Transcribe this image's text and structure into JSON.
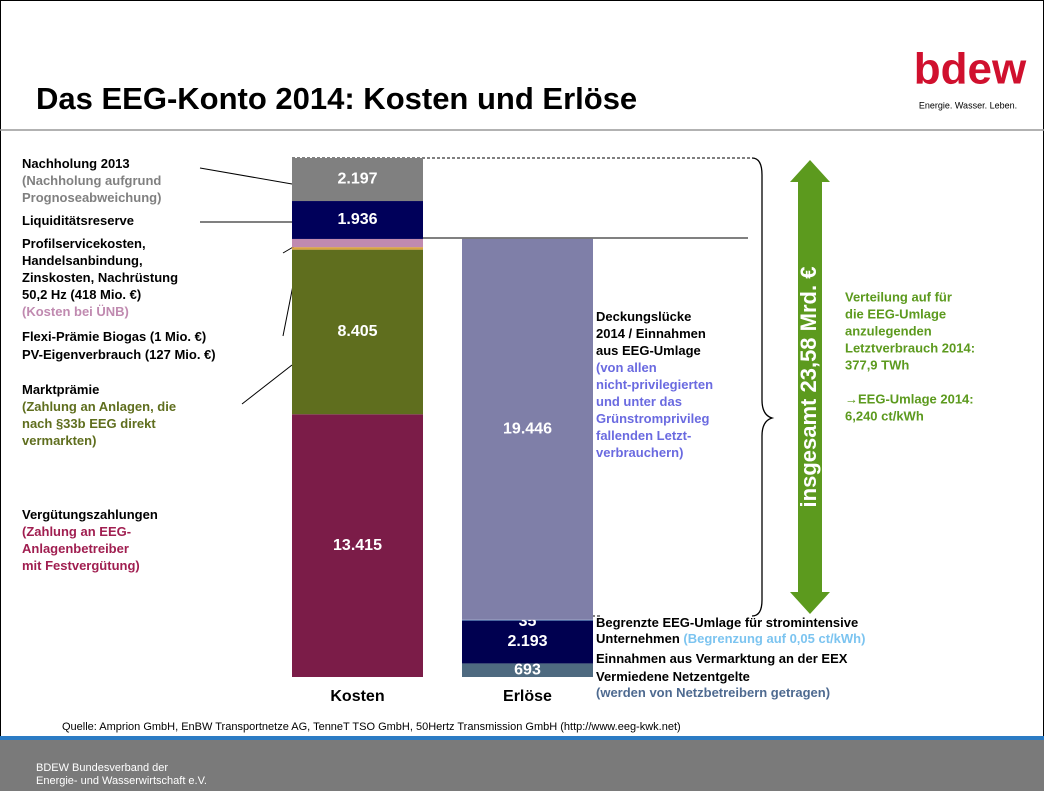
{
  "chart_data": {
    "type": "stacked_bar",
    "title": "Das EEG-Konto 2014: Kosten und Erlöse",
    "logo": {
      "brand": "bdew",
      "slogan": "Energie. Wasser. Leben."
    },
    "categories": [
      "Kosten",
      "Erlöse"
    ],
    "series": [
      {
        "color": "#7b1c48",
        "values": [
          13415,
          null
        ],
        "value_labels": [
          "13.415",
          null
        ],
        "annotation": [
          [
            {
              "text": "Vergütungszahlungen",
              "color": "#000000"
            }
          ],
          [
            {
              "text": "(Zahlung an EEG-",
              "color": "#a01e50"
            }
          ],
          [
            {
              "text": "Anlagenbetreiber",
              "color": "#a01e50"
            }
          ],
          [
            {
              "text": "mit Festvergütung)",
              "color": "#a01e50"
            }
          ]
        ]
      },
      {
        "color": "#5f6e1e",
        "values": [
          8405,
          null
        ],
        "value_labels": [
          "8.405",
          null
        ],
        "annotation": [
          [
            {
              "text": "Marktprämie",
              "color": "#000000"
            }
          ],
          [
            {
              "text": "(Zahlung an Anlagen, die",
              "color": "#5f6e1e"
            }
          ],
          [
            {
              "text": "nach §33b EEG direkt",
              "color": "#5f6e1e"
            }
          ],
          [
            {
              "text": "vermarkten)",
              "color": "#5f6e1e"
            }
          ]
        ]
      },
      {
        "color": "#d9a441",
        "values": [
          127,
          null
        ],
        "value_labels": [
          null,
          null
        ],
        "annotation": [
          [
            {
              "text": "PV-Eigenverbrauch (127 Mio. €)",
              "color": "#000000"
            }
          ]
        ]
      },
      {
        "color": "#7b6000",
        "values": [
          1,
          null
        ],
        "value_labels": [
          null,
          null
        ],
        "annotation": [
          [
            {
              "text": "Flexi-Prämie Biogas (1 Mio. €)",
              "color": "#000000"
            }
          ]
        ]
      },
      {
        "color": "#c08ab0",
        "values": [
          418,
          null
        ],
        "value_labels": [
          null,
          null
        ],
        "annotation": [
          [
            {
              "text": "Profilservicekosten,",
              "color": "#000000"
            }
          ],
          [
            {
              "text": "Handelsanbindung,",
              "color": "#000000"
            }
          ],
          [
            {
              "text": "Zinskosten, Nachrüstung",
              "color": "#000000"
            }
          ],
          [
            {
              "text": "50,2 Hz  (418 Mio. €)",
              "color": "#000000"
            }
          ],
          [
            {
              "text": "(Kosten bei ÜNB)",
              "color": "#c08ab0"
            }
          ]
        ]
      },
      {
        "color": "#00005a",
        "values": [
          1936,
          null
        ],
        "value_labels": [
          "1.936",
          null
        ],
        "annotation": [
          [
            {
              "text": "Liquiditätsreserve",
              "color": "#000000"
            }
          ]
        ]
      },
      {
        "color": "#808080",
        "values": [
          2197,
          null
        ],
        "value_labels": [
          "2.197",
          null
        ],
        "annotation": [
          [
            {
              "text": "Nachholung 2013",
              "color": "#000000"
            }
          ],
          [
            {
              "text": "(Nachholung aufgrund",
              "color": "#808080"
            }
          ],
          [
            {
              "text": "Prognoseabweichung)",
              "color": "#808080"
            }
          ]
        ]
      },
      {
        "color": "#4e6a80",
        "values": [
          null,
          693
        ],
        "value_labels": [
          null,
          "693"
        ],
        "annotation": [
          [
            {
              "text": "Vermiedene Netzentgelte",
              "color": "#000000"
            }
          ],
          [
            {
              "text": "(werden von Netzbetreibern getragen)",
              "color": "#4e6a90"
            }
          ]
        ]
      },
      {
        "color": "#000050",
        "values": [
          null,
          2193
        ],
        "value_labels": [
          null,
          "2.193"
        ],
        "annotation": [
          [
            {
              "text": "Einnahmen aus Vermarktung an der EEX",
              "color": "#000000"
            }
          ]
        ]
      },
      {
        "color": "#8ec8f0",
        "values": [
          null,
          35
        ],
        "value_labels": [
          null,
          "35"
        ],
        "annotation": [
          [
            {
              "text": "Begrenzte EEG-Umlage für stromintensive",
              "color": "#000000"
            }
          ],
          [
            {
              "text": "Unternehmen ",
              "color": "#000000"
            },
            {
              "text": "(Begrenzung auf 0,05 ct/kWh)",
              "color": "#7cc4f0"
            }
          ]
        ]
      },
      {
        "color": "#7f7fa8",
        "values": [
          null,
          19446
        ],
        "value_labels": [
          null,
          "19.446"
        ],
        "annotation": [
          [
            {
              "text": "Deckungslücke",
              "color": "#000000"
            }
          ],
          [
            {
              "text": "2014 / Einnahmen",
              "color": "#000000"
            }
          ],
          [
            {
              "text": "aus EEG-Umlage",
              "color": "#000000"
            }
          ],
          [
            {
              "text": "(von allen",
              "color": "#6a6ae0"
            }
          ],
          [
            {
              "text": "nicht-privilegierten",
              "color": "#6a6ae0"
            }
          ],
          [
            {
              "text": "und unter das",
              "color": "#6a6ae0"
            }
          ],
          [
            {
              "text": "Grünstromprivileg",
              "color": "#6a6ae0"
            }
          ],
          [
            {
              "text": "fallenden Letzt-",
              "color": "#6a6ae0"
            }
          ],
          [
            {
              "text": "verbrauchern)",
              "color": "#6a6ae0"
            }
          ]
        ]
      }
    ],
    "total_label": "insgesamt 23,58 Mrd. €",
    "side_note": [
      "Verteilung auf für",
      "die EEG-Umlage",
      "anzulegenden",
      "Letztverbrauch 2014:",
      "377,9 TWh",
      "→EEG-Umlage 2014:",
      "6,240 ct/kWh"
    ],
    "source": "Quelle: Amprion GmbH, EnBW Transportnetze AG, TenneT TSO GmbH, 50Hertz Transmission GmbH (http://www.eeg-kwk.net)",
    "footer": [
      "BDEW Bundesverband der",
      "Energie- und Wasserwirtschaft e.V."
    ]
  }
}
